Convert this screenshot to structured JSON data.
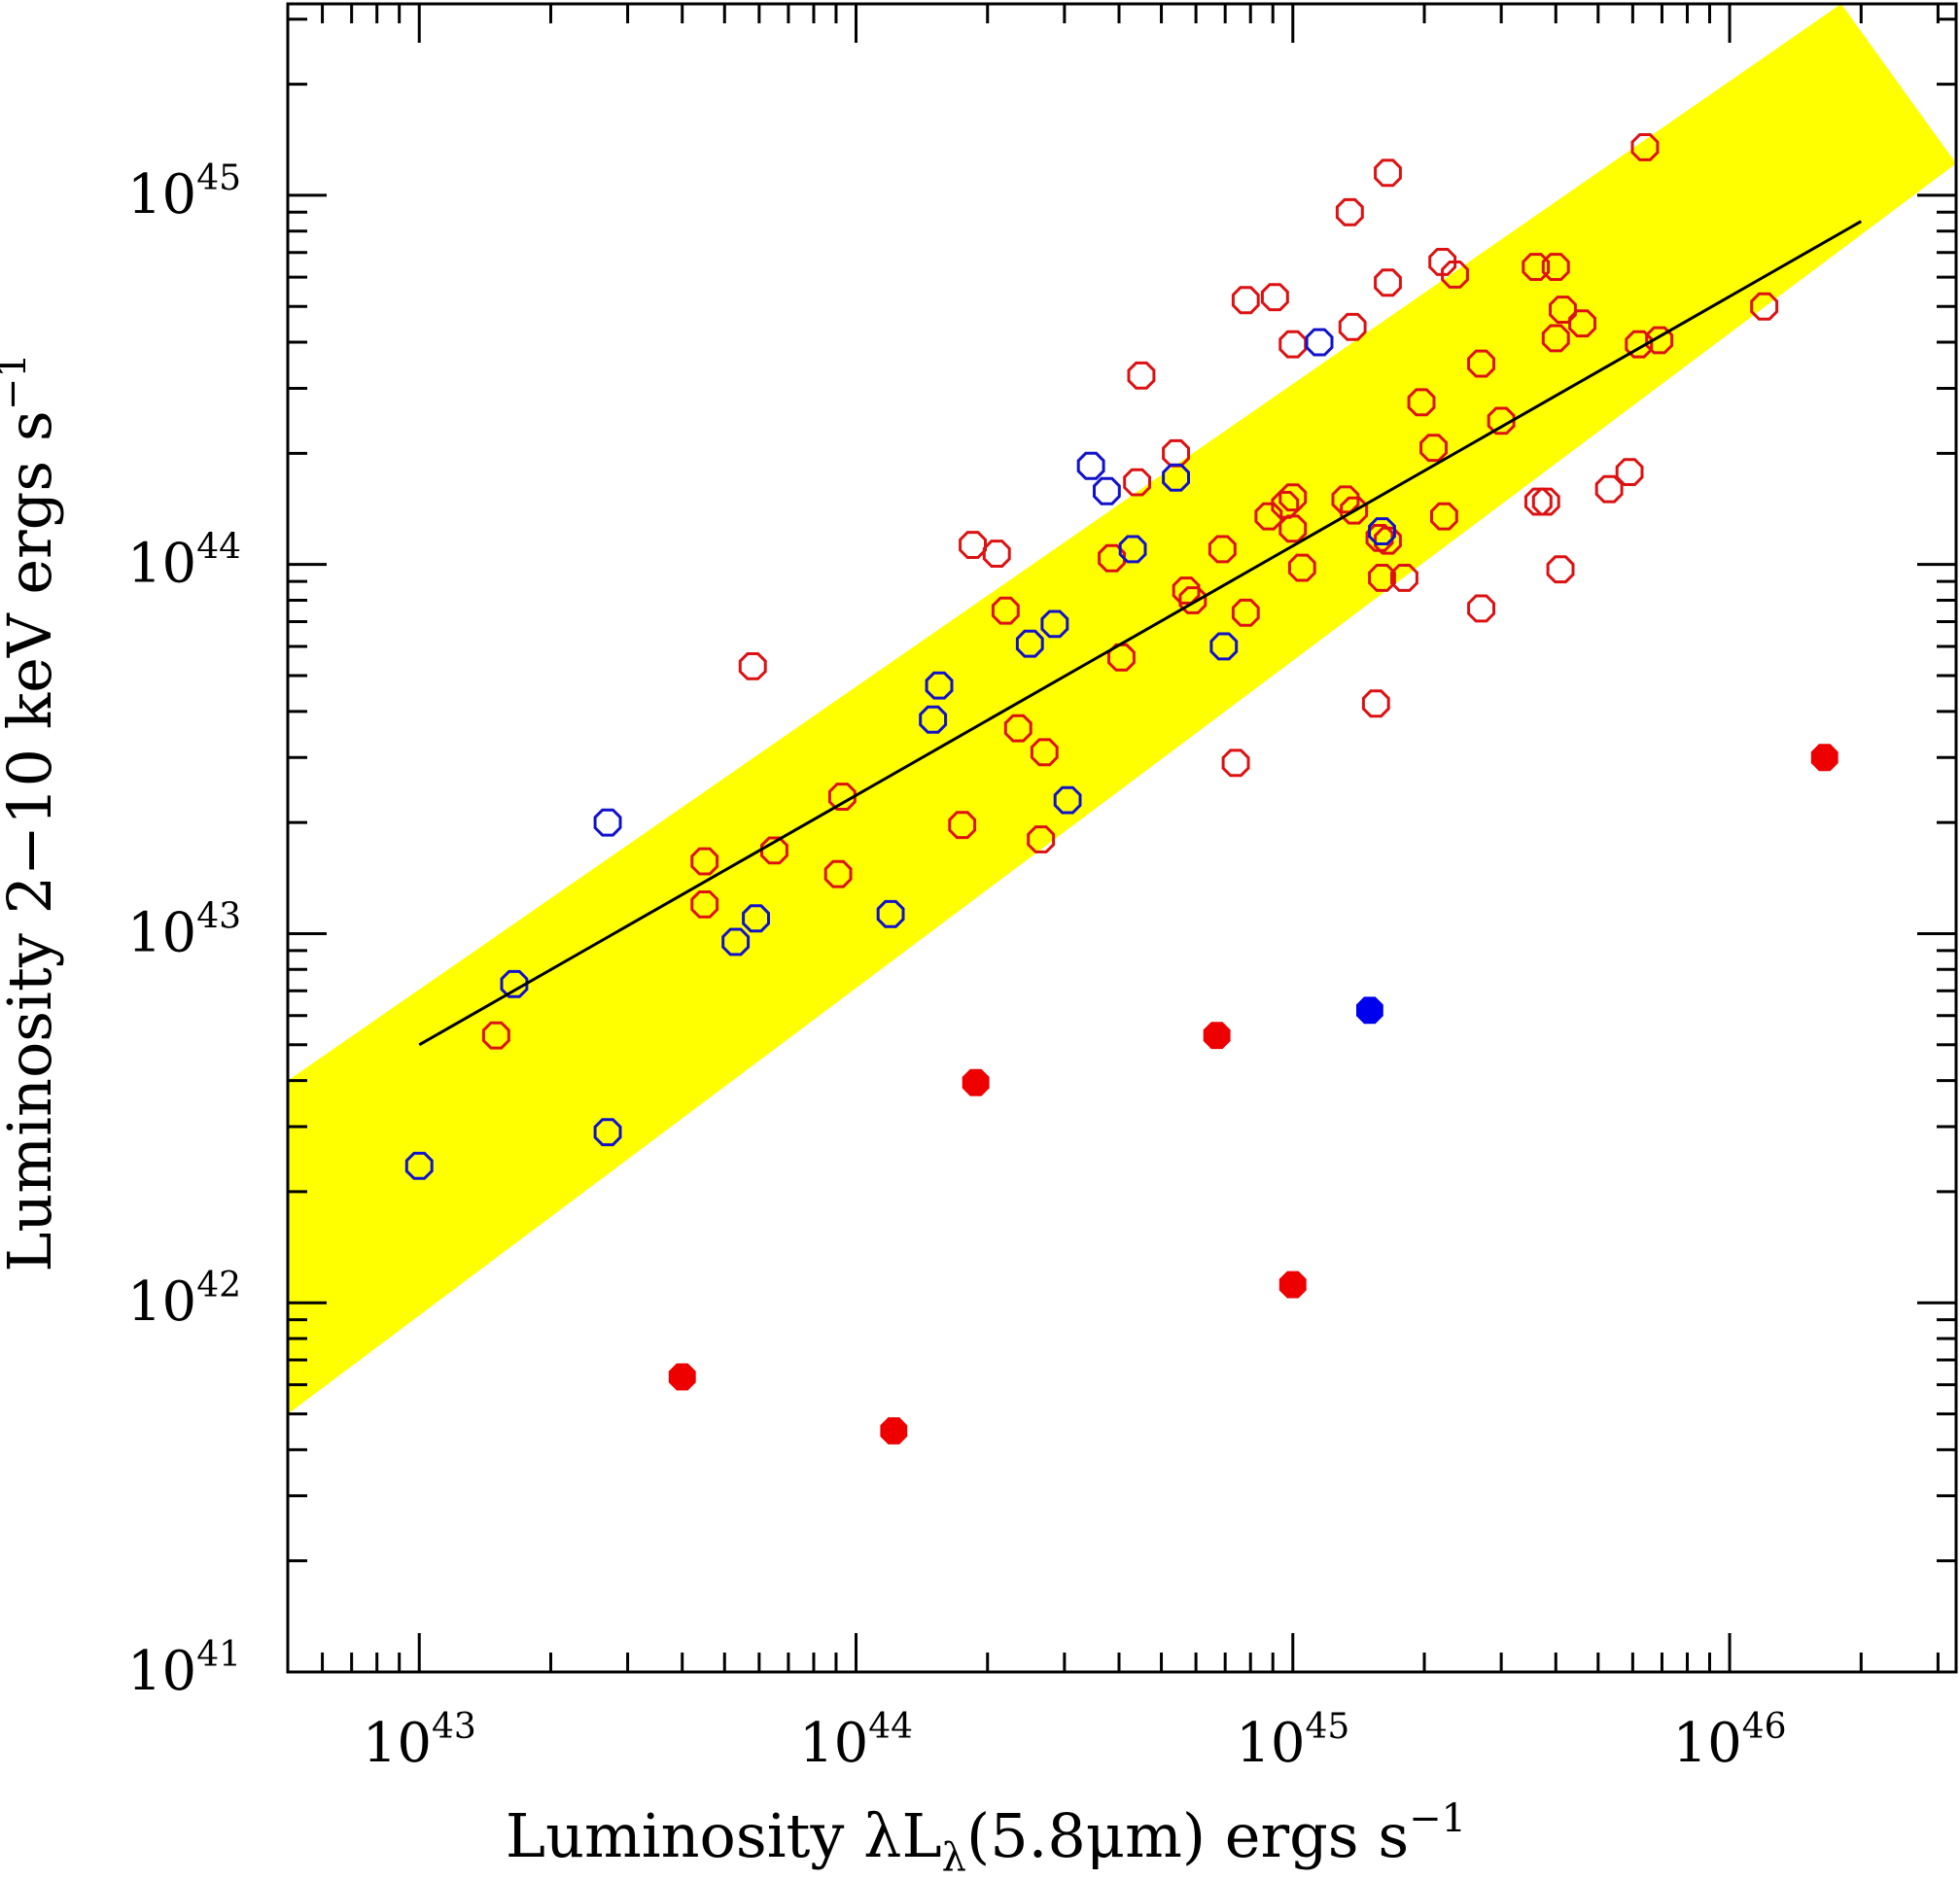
{
  "chart_data": {
    "type": "scatter",
    "xlabel": "Luminosity λL",
    "xlabel_sub": "λ",
    "xlabel_rest": "(5.8μm) ergs s",
    "xlabel_sup": "−1",
    "ylabel": "Luminosity 2−10 keV ergs s",
    "ylabel_sup": "−1",
    "x_scale": "log",
    "y_scale": "log",
    "xlim": [
      5e+42,
      3.3e+46
    ],
    "ylim": [
      1e+41,
      3.3e+45
    ],
    "x_ticks": [
      {
        "base": "10",
        "exp": "43",
        "value": 1e+43
      },
      {
        "base": "10",
        "exp": "44",
        "value": 1e+44
      },
      {
        "base": "10",
        "exp": "45",
        "value": 1e+45
      },
      {
        "base": "10",
        "exp": "46",
        "value": 1e+46
      }
    ],
    "y_ticks": [
      {
        "base": "10",
        "exp": "41",
        "value": 1e+41
      },
      {
        "base": "10",
        "exp": "42",
        "value": 1e+42
      },
      {
        "base": "10",
        "exp": "43",
        "value": 1e+43
      },
      {
        "base": "10",
        "exp": "44",
        "value": 1e+44
      },
      {
        "base": "10",
        "exp": "45",
        "value": 1e+45
      }
    ],
    "grid": false,
    "legend": "none",
    "band": {
      "color": "#ffff00",
      "lower": [
        [
          5e+42,
          5e+41
        ],
        [
          3.3e+46,
          1.22e+45
        ]
      ],
      "upper": [
        [
          5e+42,
          4e+42
        ],
        [
          1.8e+46,
          3.3e+45
        ]
      ]
    },
    "fit_line": {
      "color": "#000000",
      "points": [
        [
          1e+43,
          5e+42
        ],
        [
          2e+46,
          8.5e+44
        ]
      ]
    },
    "series": [
      {
        "color": "#dd1111",
        "marker": "open-octagon",
        "points": [
          [
            1.5e+43,
            5.3e+42
          ],
          [
            4.5e+43,
            1.57e+43
          ],
          [
            4.5e+43,
            1.2e+43
          ],
          [
            5.8e+43,
            5.3e+43
          ],
          [
            6.5e+43,
            1.68e+43
          ],
          [
            9.3e+43,
            2.35e+43
          ],
          [
            9.1e+43,
            1.45e+43
          ],
          [
            1.75e+44,
            1.97e+43
          ],
          [
            1.85e+44,
            1.13e+44
          ],
          [
            2.1e+44,
            1.07e+44
          ],
          [
            2.2e+44,
            7.5e+43
          ],
          [
            2.35e+44,
            3.6e+43
          ],
          [
            2.7e+44,
            3.1e+43
          ],
          [
            2.65e+44,
            1.8e+43
          ],
          [
            3.85e+44,
            1.04e+44
          ],
          [
            4.05e+44,
            5.6e+43
          ],
          [
            4.4e+44,
            1.67e+44
          ],
          [
            4.5e+44,
            3.25e+44
          ],
          [
            5.4e+44,
            2e+44
          ],
          [
            5.7e+44,
            8.5e+43
          ],
          [
            5.9e+44,
            8e+43
          ],
          [
            6.9e+44,
            1.1e+44
          ],
          [
            7.4e+44,
            2.9e+43
          ],
          [
            7.8e+44,
            7.4e+43
          ],
          [
            7.8e+44,
            5.2e+44
          ],
          [
            8.8e+44,
            1.35e+44
          ],
          [
            9.1e+44,
            5.3e+44
          ],
          [
            9.6e+44,
            1.45e+44
          ],
          [
            1e+45,
            1.52e+44
          ],
          [
            1e+45,
            1.25e+44
          ],
          [
            1e+45,
            3.95e+44
          ],
          [
            1.05e+45,
            9.8e+43
          ],
          [
            1.32e+45,
            1.5e+44
          ],
          [
            1.38e+45,
            1.4e+44
          ],
          [
            1.37e+45,
            4.4e+44
          ],
          [
            1.35e+45,
            9e+44
          ],
          [
            1.58e+45,
            1.18e+44
          ],
          [
            1.6e+45,
            9.2e+43
          ],
          [
            1.65e+45,
            1.16e+44
          ],
          [
            1.65e+45,
            5.8e+44
          ],
          [
            1.65e+45,
            1.15e+45
          ],
          [
            1.55e+45,
            4.2e+43
          ],
          [
            1.8e+45,
            9.2e+43
          ],
          [
            1.97e+45,
            2.75e+44
          ],
          [
            2.1e+45,
            2.07e+44
          ],
          [
            2.2e+45,
            6.6e+44
          ],
          [
            2.22e+45,
            1.35e+44
          ],
          [
            2.35e+45,
            6.1e+44
          ],
          [
            2.7e+45,
            3.5e+44
          ],
          [
            2.7e+45,
            7.6e+43
          ],
          [
            3e+45,
            2.45e+44
          ],
          [
            3.6e+45,
            6.4e+44
          ],
          [
            3.65e+45,
            1.48e+44
          ],
          [
            3.8e+45,
            1.48e+44
          ],
          [
            4e+45,
            6.4e+44
          ],
          [
            4e+45,
            4.1e+44
          ],
          [
            4.15e+45,
            4.9e+44
          ],
          [
            4.1e+45,
            9.7e+43
          ],
          [
            4.6e+45,
            4.5e+44
          ],
          [
            5.3e+45,
            1.6e+44
          ],
          [
            5.9e+45,
            1.78e+44
          ],
          [
            6.2e+45,
            3.95e+44
          ],
          [
            6.4e+45,
            1.35e+45
          ],
          [
            6.9e+45,
            4.05e+44
          ],
          [
            1.2e+46,
            5e+44
          ]
        ]
      },
      {
        "color": "#1111cc",
        "marker": "open-octagon",
        "points": [
          [
            1e+43,
            2.35e+42
          ],
          [
            1.65e+43,
            7.3e+42
          ],
          [
            2.7e+43,
            2e+43
          ],
          [
            2.7e+43,
            2.9e+42
          ],
          [
            5.3e+43,
            9.5e+42
          ],
          [
            5.9e+43,
            1.1e+43
          ],
          [
            1.2e+44,
            1.13e+43
          ],
          [
            1.5e+44,
            3.8e+43
          ],
          [
            1.55e+44,
            4.7e+43
          ],
          [
            2.5e+44,
            6.1e+43
          ],
          [
            2.85e+44,
            6.9e+43
          ],
          [
            3.05e+44,
            2.3e+43
          ],
          [
            3.45e+44,
            1.85e+44
          ],
          [
            3.75e+44,
            1.58e+44
          ],
          [
            4.3e+44,
            1.1e+44
          ],
          [
            5.4e+44,
            1.72e+44
          ],
          [
            6.95e+44,
            6e+43
          ],
          [
            1.15e+45,
            4e+44
          ],
          [
            1.6e+45,
            1.23e+44
          ]
        ]
      },
      {
        "color": "#ee0000",
        "marker": "filled-octagon",
        "points": [
          [
            4e+43,
            6.3e+41
          ],
          [
            1.22e+44,
            4.5e+41
          ],
          [
            1.88e+44,
            3.95e+42
          ],
          [
            6.7e+44,
            5.3e+42
          ],
          [
            1e+45,
            1.12e+42
          ],
          [
            1.65e+46,
            3e+43
          ]
        ]
      },
      {
        "color": "#0000ee",
        "marker": "filled-octagon",
        "points": [
          [
            1.5e+45,
            6.2e+42
          ]
        ]
      }
    ]
  }
}
